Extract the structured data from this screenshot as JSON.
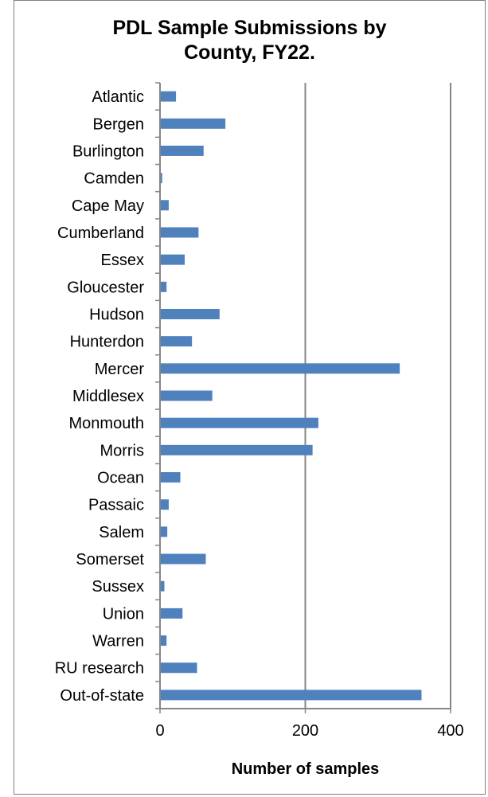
{
  "chart_data": {
    "type": "bar",
    "orientation": "horizontal",
    "title_lines": [
      "PDL Sample Submissions by",
      "County, FY22."
    ],
    "xlabel": "Number of samples",
    "ylabel": "",
    "xlim": [
      0,
      400
    ],
    "xticks": [
      0,
      200,
      400
    ],
    "xtick_labels": [
      "0",
      "200",
      "400"
    ],
    "grid": "vertical major gridlines",
    "legend": "none",
    "bar_color": "#4f81bd",
    "gridline_color": "#868686",
    "categories": [
      "Atlantic",
      "Bergen",
      "Burlington",
      "Camden",
      "Cape May",
      "Cumberland",
      "Essex",
      "Gloucester",
      "Hudson",
      "Hunterdon",
      "Mercer",
      "Middlesex",
      "Monmouth",
      "Morris",
      "Ocean",
      "Passaic",
      "Salem",
      "Somerset",
      "Sussex",
      "Union",
      "Warren",
      "RU research",
      "Out-of-state"
    ],
    "values": [
      22,
      90,
      60,
      3,
      12,
      53,
      34,
      9,
      82,
      44,
      330,
      72,
      218,
      210,
      28,
      12,
      10,
      63,
      6,
      31,
      9,
      51,
      360
    ]
  }
}
